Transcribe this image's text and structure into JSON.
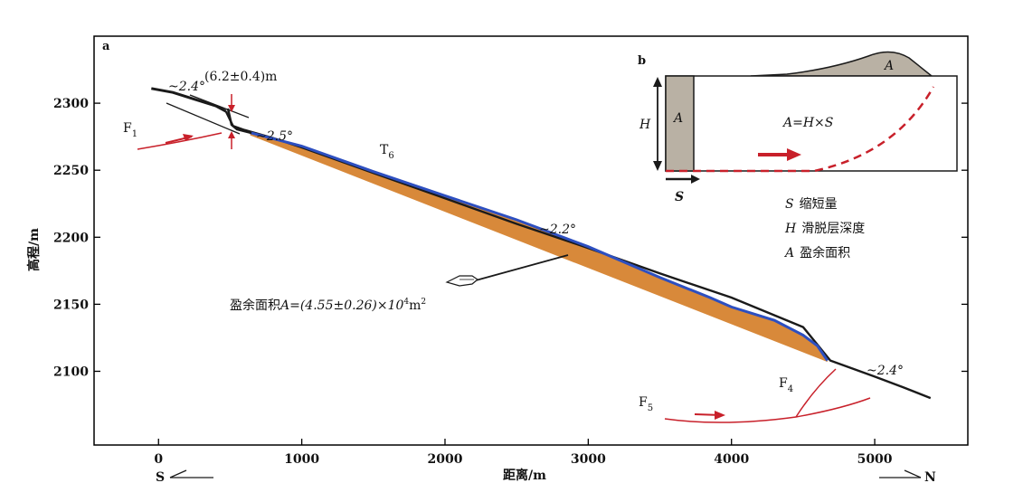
{
  "chart_data": {
    "type": "line",
    "panel_a_label": "a",
    "panel_b_label": "b",
    "xlabel": "距离/m",
    "ylabel": "高程/m",
    "xlim": [
      -450,
      5650
    ],
    "ylim": [
      2045,
      2350
    ],
    "x_ticks": [
      0,
      1000,
      2000,
      3000,
      4000,
      5000
    ],
    "y_ticks": [
      2100,
      2150,
      2200,
      2250,
      2300
    ],
    "x_tick_labels": [
      "0",
      "1000",
      "2000",
      "3000",
      "4000",
      "5000"
    ],
    "y_tick_labels": [
      "2100",
      "2150",
      "2200",
      "2250",
      "2300"
    ],
    "direction_left": "S",
    "direction_right": "N",
    "terrace_label": "T",
    "terrace_sub": "6",
    "fault_f1": "F",
    "fault_f1_sub": "1",
    "fault_f4": "F",
    "fault_f4_sub": "4",
    "fault_f5": "F",
    "fault_f5_sub": "5",
    "scarp_height": "(6.2±0.4)m",
    "slope_1": "~2.4°",
    "slope_2": "~2.5°",
    "slope_3": "~2.2°",
    "slope_4": "~2.4°",
    "excess_area_label": "盈余面积",
    "excess_area_formula": "A=(4.55±0.26)×10",
    "excess_area_exp": "4",
    "excess_area_unit": "m",
    "excess_area_unit_exp": "2",
    "inset": {
      "formula": "A=H×S",
      "symbol_a": "A",
      "symbol_h": "H",
      "symbol_s": "S",
      "legend": [
        {
          "sym": "S",
          "text": "缩短量"
        },
        {
          "sym": "H",
          "text": "滑脱层深度"
        },
        {
          "sym": "A",
          "text": "盈余面积"
        }
      ]
    },
    "series": [
      {
        "role": "upper_terrace_surface",
        "color": "#1a1a1a",
        "x": [
          -50,
          100,
          250,
          400,
          470
        ],
        "y": [
          2311,
          2308,
          2303,
          2298,
          2294
        ]
      },
      {
        "role": "lower_terrace_surface",
        "color": "#1a1a1a",
        "x": [
          470,
          520,
          600,
          700,
          800,
          1000,
          1500,
          2000,
          2500,
          3000,
          3500,
          4000,
          4500,
          4690,
          5000,
          5200,
          5390
        ],
        "y": [
          2294,
          2283,
          2280,
          2277,
          2274,
          2267,
          2248,
          2229,
          2210,
          2192,
          2173,
          2155,
          2133,
          2108,
          2096,
          2088,
          2080
        ]
      },
      {
        "role": "modern_profile_blue",
        "color": "#2d4fc0",
        "x": [
          640,
          1000,
          1500,
          2000,
          2500,
          3000,
          3500,
          3850,
          4000,
          4300,
          4500,
          4600,
          4670
        ],
        "y": [
          2278,
          2268,
          2249,
          2231,
          2213,
          2193,
          2170,
          2155,
          2148,
          2138,
          2127,
          2119,
          2108
        ]
      },
      {
        "role": "restored_baseline_reference",
        "color": "#1a1a1a",
        "x": [
          640,
          4670
        ],
        "y": [
          2276,
          2107
        ]
      }
    ],
    "excess_area_color": "#d8893a",
    "fault_color": "#c8202a"
  }
}
